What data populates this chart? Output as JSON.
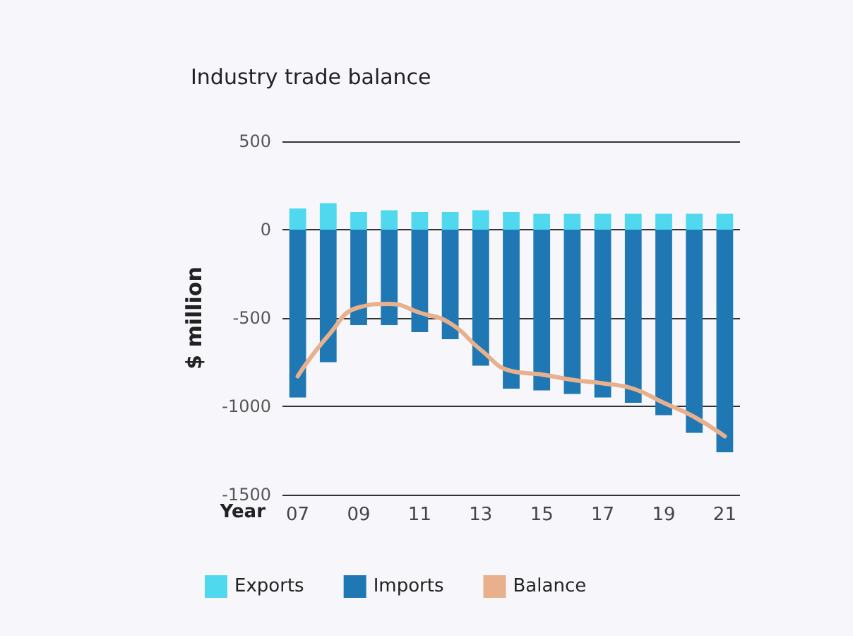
{
  "chart_data": {
    "type": "bar",
    "title": "Industry trade balance",
    "xlabel": "Year",
    "ylabel": "$ million",
    "categories": [
      "07",
      null,
      "09",
      null,
      "11",
      null,
      "13",
      null,
      "15",
      null,
      "17",
      null,
      "19",
      null,
      "21"
    ],
    "series": [
      {
        "name": "Exports",
        "color": "#4fd8ee",
        "values": [
          120,
          150,
          100,
          110,
          100,
          100,
          110,
          100,
          90,
          90,
          90,
          90,
          90,
          90,
          90
        ]
      },
      {
        "name": "Imports",
        "color": "#1f78b4",
        "values": [
          -950,
          -750,
          -540,
          -540,
          -580,
          -620,
          -770,
          -900,
          -910,
          -930,
          -950,
          -980,
          -1050,
          -1150,
          -1260
        ]
      },
      {
        "name": "Balance",
        "type": "line",
        "color": "#e8b08c",
        "values": [
          -830,
          -600,
          -440,
          -420,
          -470,
          -530,
          -680,
          -800,
          -820,
          -850,
          -870,
          -900,
          -980,
          -1060,
          -1170
        ]
      }
    ],
    "stacked": true,
    "ylim": [
      -1500,
      500
    ],
    "yticks": [
      -1500,
      -1000,
      -500,
      0,
      500
    ],
    "grid": "y",
    "legend": "bottom",
    "marker": "none",
    "line_style": "solid"
  }
}
